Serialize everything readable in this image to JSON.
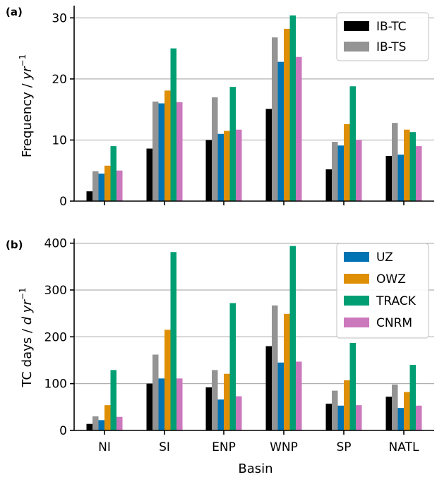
{
  "chart_data": [
    {
      "type": "bar",
      "panel_label": "(a)",
      "ylabel_main": "Frequency / ",
      "ylabel_unit": "yr",
      "ylabel_exp": "−1",
      "categories": [
        "NI",
        "SI",
        "ENP",
        "WNP",
        "SP",
        "NATL"
      ],
      "ylim": [
        0,
        32
      ],
      "yticks": [
        "0",
        "10",
        "20",
        "30"
      ],
      "ytick_values": [
        0,
        10,
        20,
        30
      ],
      "grid": true,
      "legend_placement": "top-right",
      "legend_series": [
        0,
        1
      ],
      "series": [
        {
          "name": "IB-TC",
          "color": "#000000",
          "values": [
            1.6,
            8.6,
            10.0,
            15.1,
            5.2,
            7.4
          ]
        },
        {
          "name": "IB-TS",
          "color": "#949494",
          "values": [
            4.9,
            16.3,
            17.0,
            26.8,
            9.7,
            12.8
          ]
        },
        {
          "name": "UZ",
          "color": "#0173b2",
          "values": [
            4.5,
            16.0,
            11.0,
            22.8,
            9.1,
            7.6
          ]
        },
        {
          "name": "OWZ",
          "color": "#de8f05",
          "values": [
            5.8,
            18.1,
            11.5,
            28.2,
            12.6,
            11.7
          ]
        },
        {
          "name": "TRACK",
          "color": "#029e73",
          "values": [
            9.0,
            25.0,
            18.7,
            30.4,
            18.8,
            11.3
          ]
        },
        {
          "name": "CNRM",
          "color": "#cc78bc",
          "values": [
            5.0,
            16.2,
            11.7,
            23.6,
            10.0,
            9.0
          ]
        }
      ]
    },
    {
      "type": "bar",
      "panel_label": "(b)",
      "ylabel_main": "TC days / ",
      "ylabel_unit": "d yr",
      "ylabel_exp": "−1",
      "xlabel": "Basin",
      "categories": [
        "NI",
        "SI",
        "ENP",
        "WNP",
        "SP",
        "NATL"
      ],
      "ylim": [
        0,
        410
      ],
      "yticks": [
        "0",
        "100",
        "200",
        "300",
        "400"
      ],
      "ytick_values": [
        0,
        100,
        200,
        300,
        400
      ],
      "grid": true,
      "legend_placement": "top-right",
      "legend_series": [
        2,
        3,
        4,
        5
      ],
      "series": [
        {
          "name": "IB-TC",
          "color": "#000000",
          "values": [
            14,
            100,
            92,
            180,
            57,
            72
          ]
        },
        {
          "name": "IB-TS",
          "color": "#949494",
          "values": [
            30,
            162,
            129,
            267,
            85,
            98
          ]
        },
        {
          "name": "UZ",
          "color": "#0173b2",
          "values": [
            22,
            111,
            66,
            145,
            53,
            48
          ]
        },
        {
          "name": "OWZ",
          "color": "#de8f05",
          "values": [
            54,
            215,
            121,
            249,
            107,
            82
          ]
        },
        {
          "name": "TRACK",
          "color": "#029e73",
          "values": [
            129,
            381,
            272,
            394,
            187,
            140
          ]
        },
        {
          "name": "CNRM",
          "color": "#cc78bc",
          "values": [
            29,
            111,
            73,
            147,
            54,
            53
          ]
        }
      ]
    }
  ]
}
